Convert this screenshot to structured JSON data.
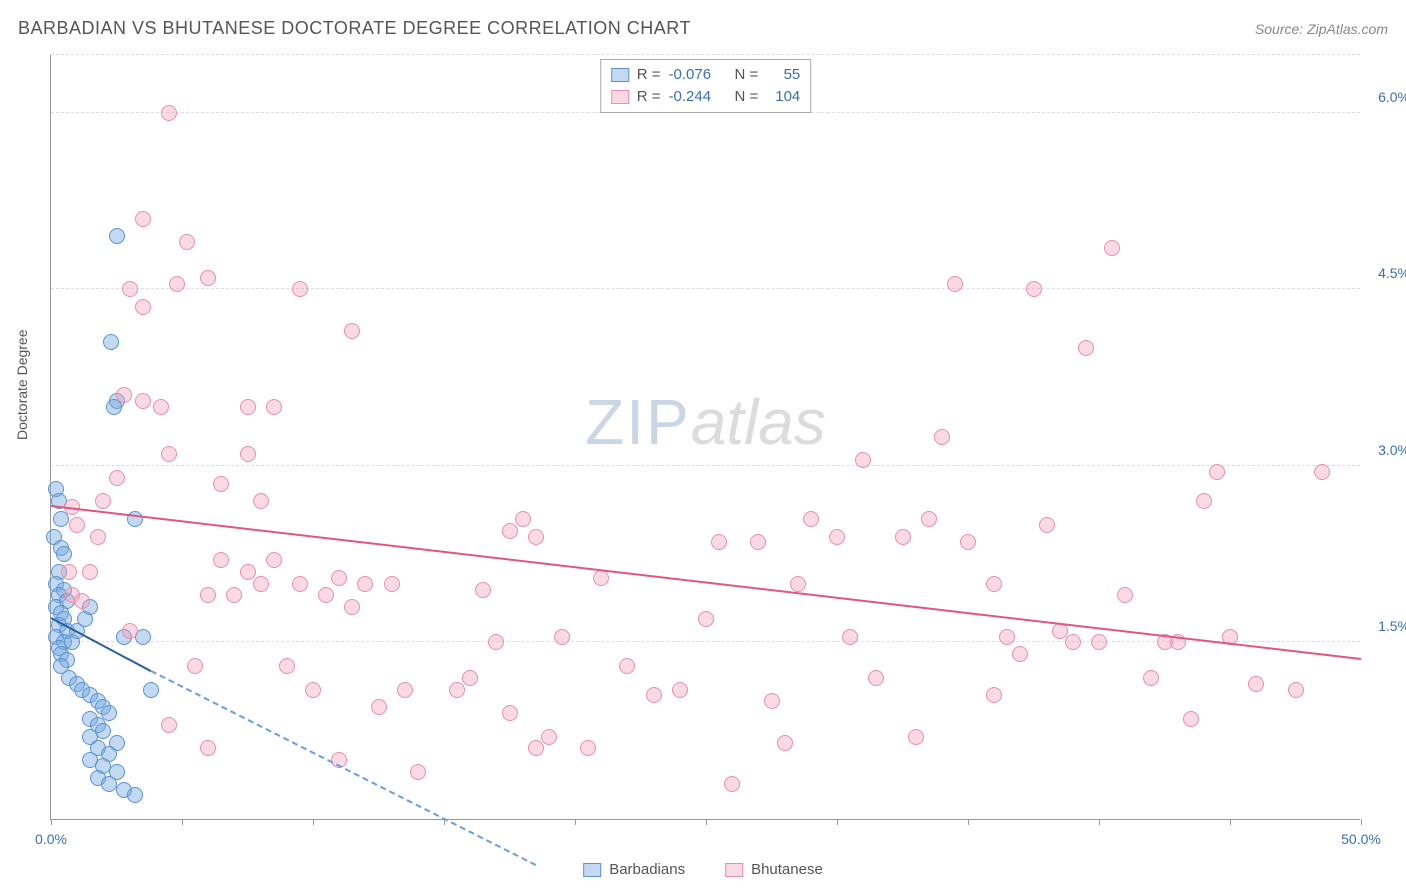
{
  "title": "BARBADIAN VS BHUTANESE DOCTORATE DEGREE CORRELATION CHART",
  "source": "Source: ZipAtlas.com",
  "y_axis_label": "Doctorate Degree",
  "watermark": {
    "part1": "ZIP",
    "part2": "atlas"
  },
  "chart": {
    "type": "scatter",
    "xlim": [
      0,
      50
    ],
    "ylim": [
      0,
      6.5
    ],
    "x_ticks": [
      0,
      5,
      10,
      15,
      20,
      25,
      30,
      35,
      40,
      45,
      50
    ],
    "x_tick_labels_shown": {
      "0": "0.0%",
      "50": "50.0%"
    },
    "y_gridlines": [
      1.5,
      3.0,
      4.5,
      6.0
    ],
    "y_tick_labels": [
      "1.5%",
      "3.0%",
      "4.5%",
      "6.0%"
    ],
    "background_color": "#ffffff",
    "grid_color": "#dddddd",
    "axis_color": "#999999",
    "tick_label_color": "#3b6fb5",
    "marker_size": 16,
    "series": [
      {
        "name": "Barbadians",
        "fill_color": "rgba(120,170,225,0.45)",
        "stroke_color": "#5a93d0",
        "trend_color": "#2a5fa0",
        "trend_dash_color": "#6a9fd8",
        "R": "-0.076",
        "N": "55",
        "trend": {
          "x1": 0,
          "y1": 1.7,
          "x2": 3.8,
          "y2": 1.25
        },
        "trend_extended": {
          "x1": 3.8,
          "y1": 1.25,
          "x2": 18.5,
          "y2": -0.4
        },
        "points": [
          [
            0.2,
            2.8
          ],
          [
            0.3,
            2.7
          ],
          [
            0.4,
            2.55
          ],
          [
            0.1,
            2.4
          ],
          [
            0.4,
            2.3
          ],
          [
            0.5,
            2.25
          ],
          [
            2.5,
            4.95
          ],
          [
            2.3,
            4.05
          ],
          [
            2.5,
            3.55
          ],
          [
            2.4,
            3.5
          ],
          [
            0.3,
            2.1
          ],
          [
            0.2,
            2.0
          ],
          [
            0.5,
            1.95
          ],
          [
            0.3,
            1.9
          ],
          [
            0.6,
            1.85
          ],
          [
            0.2,
            1.8
          ],
          [
            0.4,
            1.75
          ],
          [
            0.5,
            1.7
          ],
          [
            0.3,
            1.65
          ],
          [
            0.6,
            1.6
          ],
          [
            0.2,
            1.55
          ],
          [
            0.5,
            1.5
          ],
          [
            3.2,
            2.55
          ],
          [
            0.3,
            1.45
          ],
          [
            0.4,
            1.4
          ],
          [
            0.6,
            1.35
          ],
          [
            0.4,
            1.3
          ],
          [
            2.8,
            1.55
          ],
          [
            0.7,
            1.2
          ],
          [
            3.5,
            1.55
          ],
          [
            1.0,
            1.15
          ],
          [
            1.2,
            1.1
          ],
          [
            1.5,
            1.05
          ],
          [
            1.8,
            1.0
          ],
          [
            2.0,
            0.95
          ],
          [
            3.8,
            1.1
          ],
          [
            2.2,
            0.9
          ],
          [
            1.5,
            0.85
          ],
          [
            1.8,
            0.8
          ],
          [
            2.0,
            0.75
          ],
          [
            1.5,
            0.7
          ],
          [
            2.5,
            0.65
          ],
          [
            1.8,
            0.6
          ],
          [
            2.2,
            0.55
          ],
          [
            1.5,
            0.5
          ],
          [
            2.0,
            0.45
          ],
          [
            2.5,
            0.4
          ],
          [
            1.8,
            0.35
          ],
          [
            2.2,
            0.3
          ],
          [
            2.8,
            0.25
          ],
          [
            3.2,
            0.2
          ],
          [
            0.8,
            1.5
          ],
          [
            1.0,
            1.6
          ],
          [
            1.3,
            1.7
          ],
          [
            1.5,
            1.8
          ]
        ]
      },
      {
        "name": "Bhutanese",
        "fill_color": "rgba(240,160,185,0.4)",
        "stroke_color": "#e890ad",
        "trend_color": "#e0567f",
        "R": "-0.244",
        "N": "104",
        "trend": {
          "x1": 0,
          "y1": 2.65,
          "x2": 50,
          "y2": 1.35
        },
        "points": [
          [
            4.5,
            6.0
          ],
          [
            3.5,
            5.1
          ],
          [
            5.2,
            4.9
          ],
          [
            6.0,
            4.6
          ],
          [
            4.8,
            4.55
          ],
          [
            3.0,
            4.5
          ],
          [
            9.5,
            4.5
          ],
          [
            3.5,
            4.35
          ],
          [
            2.8,
            3.6
          ],
          [
            3.5,
            3.55
          ],
          [
            4.2,
            3.5
          ],
          [
            7.5,
            3.5
          ],
          [
            4.5,
            3.1
          ],
          [
            11.5,
            4.15
          ],
          [
            7.5,
            3.1
          ],
          [
            8.5,
            3.5
          ],
          [
            2.5,
            2.9
          ],
          [
            2.0,
            2.7
          ],
          [
            0.8,
            2.65
          ],
          [
            1.0,
            2.5
          ],
          [
            6.5,
            2.85
          ],
          [
            1.8,
            2.4
          ],
          [
            0.7,
            2.1
          ],
          [
            1.5,
            2.1
          ],
          [
            0.8,
            1.9
          ],
          [
            1.2,
            1.85
          ],
          [
            6.5,
            2.2
          ],
          [
            7.5,
            2.1
          ],
          [
            8.5,
            2.2
          ],
          [
            6.0,
            1.9
          ],
          [
            7.0,
            1.9
          ],
          [
            8.0,
            2.0
          ],
          [
            9.5,
            2.0
          ],
          [
            11.0,
            2.05
          ],
          [
            12.0,
            2.0
          ],
          [
            10.5,
            1.9
          ],
          [
            11.5,
            1.8
          ],
          [
            13.0,
            2.0
          ],
          [
            16.5,
            1.95
          ],
          [
            17.5,
            2.45
          ],
          [
            18.0,
            2.55
          ],
          [
            18.5,
            2.4
          ],
          [
            17.0,
            1.5
          ],
          [
            16.0,
            1.2
          ],
          [
            15.5,
            1.1
          ],
          [
            13.5,
            1.1
          ],
          [
            12.5,
            0.95
          ],
          [
            14.0,
            0.4
          ],
          [
            11.0,
            0.5
          ],
          [
            17.5,
            0.9
          ],
          [
            18.5,
            0.6
          ],
          [
            19.0,
            0.7
          ],
          [
            20.5,
            0.6
          ],
          [
            19.5,
            1.55
          ],
          [
            21.0,
            2.05
          ],
          [
            22.0,
            1.3
          ],
          [
            23.0,
            1.05
          ],
          [
            24.0,
            1.1
          ],
          [
            25.0,
            1.7
          ],
          [
            26.0,
            0.3
          ],
          [
            25.5,
            2.35
          ],
          [
            27.0,
            2.35
          ],
          [
            28.5,
            2.0
          ],
          [
            27.5,
            1.0
          ],
          [
            28.0,
            0.65
          ],
          [
            29.0,
            2.55
          ],
          [
            30.0,
            2.4
          ],
          [
            31.0,
            3.05
          ],
          [
            30.5,
            1.55
          ],
          [
            31.5,
            1.2
          ],
          [
            32.5,
            2.4
          ],
          [
            33.0,
            0.7
          ],
          [
            33.5,
            2.55
          ],
          [
            34.0,
            3.25
          ],
          [
            35.0,
            2.35
          ],
          [
            36.0,
            2.0
          ],
          [
            36.0,
            1.05
          ],
          [
            36.5,
            1.55
          ],
          [
            37.0,
            1.4
          ],
          [
            37.5,
            4.5
          ],
          [
            38.0,
            2.5
          ],
          [
            39.5,
            4.0
          ],
          [
            38.5,
            1.6
          ],
          [
            39.0,
            1.5
          ],
          [
            40.0,
            1.5
          ],
          [
            41.0,
            1.9
          ],
          [
            42.0,
            1.2
          ],
          [
            42.5,
            1.5
          ],
          [
            43.0,
            1.5
          ],
          [
            43.5,
            0.85
          ],
          [
            44.5,
            2.95
          ],
          [
            45.0,
            1.55
          ],
          [
            46.0,
            1.15
          ],
          [
            47.5,
            1.1
          ],
          [
            34.5,
            4.55
          ],
          [
            40.5,
            4.85
          ],
          [
            48.5,
            2.95
          ],
          [
            44.0,
            2.7
          ],
          [
            8.0,
            2.7
          ],
          [
            5.5,
            1.3
          ],
          [
            4.5,
            0.8
          ],
          [
            6.0,
            0.6
          ],
          [
            9.0,
            1.3
          ],
          [
            10.0,
            1.1
          ],
          [
            3.0,
            1.6
          ]
        ]
      }
    ]
  },
  "top_legend": {
    "r_label": "R =",
    "n_label": "N =",
    "value_color": "#3b6fb5"
  },
  "bottom_legend": {
    "items": [
      "Barbadians",
      "Bhutanese"
    ]
  }
}
